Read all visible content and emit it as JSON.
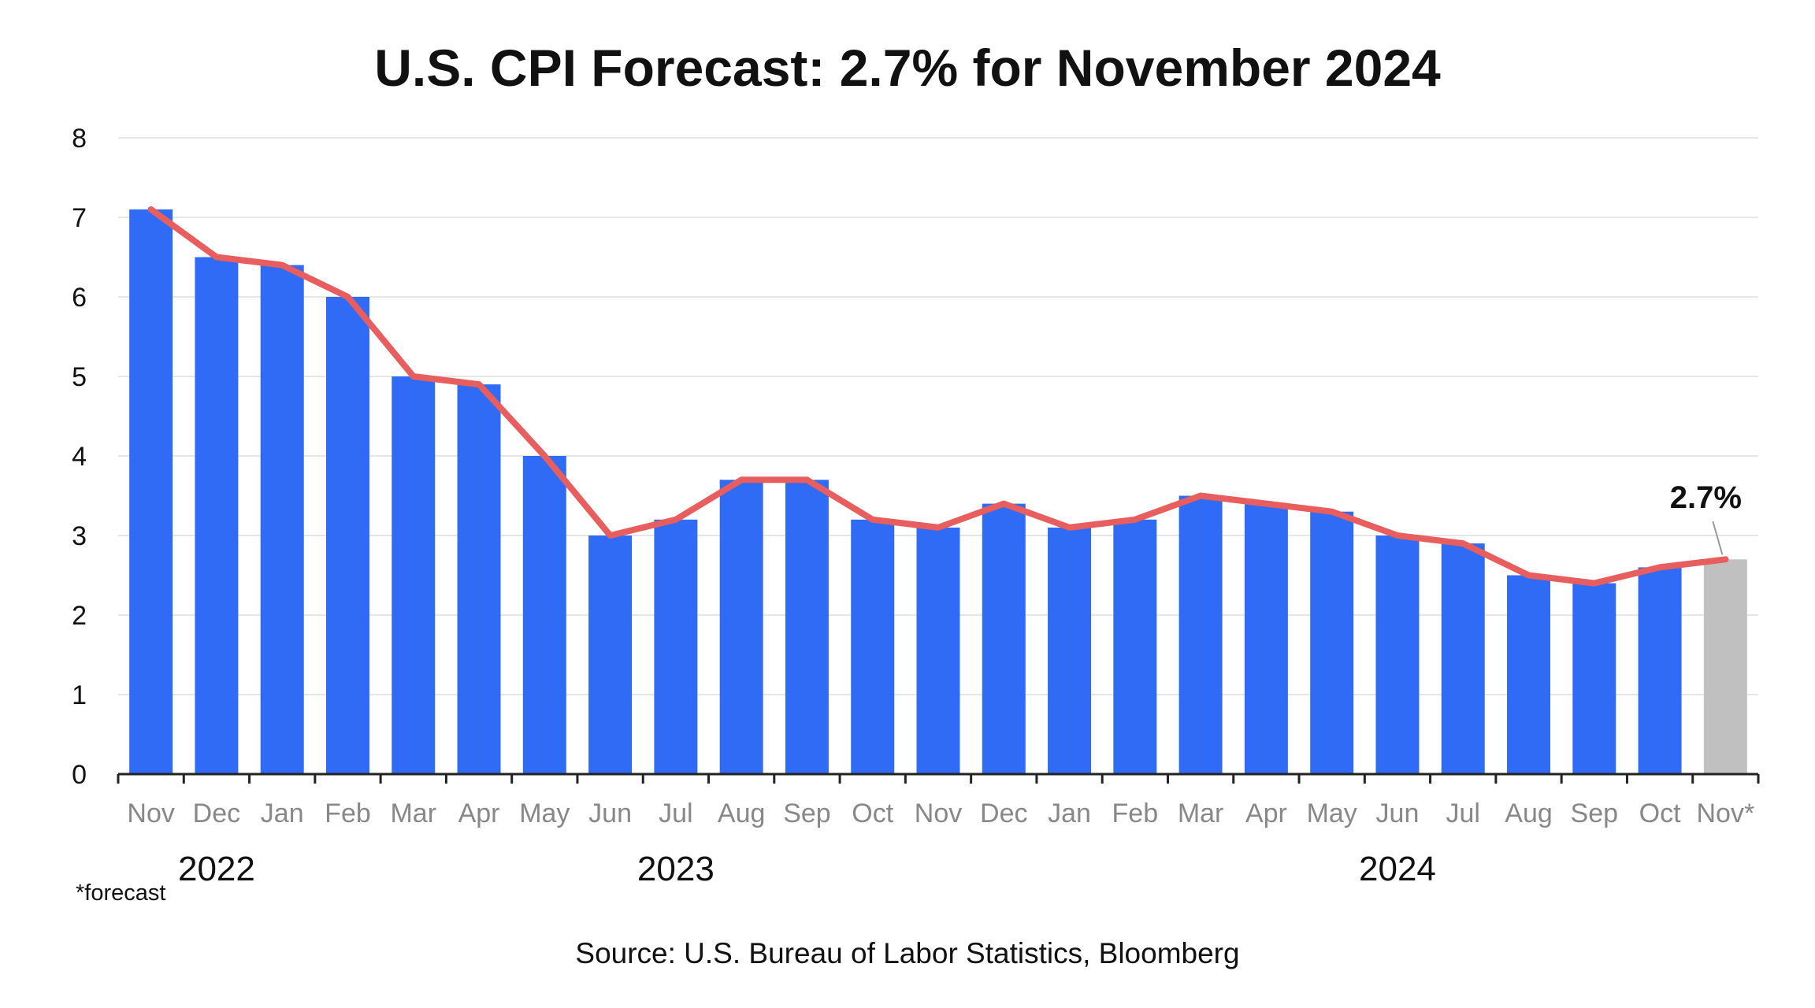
{
  "title": "U.S. CPI Forecast: 2.7% for November 2024",
  "footnote": "*forecast",
  "source": "Source: U.S. Bureau of Labor Statistics, Bloomberg",
  "colors": {
    "bar": "#2f6bf5",
    "forecast_bar": "#c0c0c0",
    "line": "#e85e5e",
    "grid": "#e6e6e6",
    "axis": "#222222",
    "tick_label": "#888888"
  },
  "chart_data": {
    "type": "bar",
    "categories": [
      "Nov",
      "Dec",
      "Jan",
      "Feb",
      "Mar",
      "Apr",
      "May",
      "Jun",
      "Jul",
      "Aug",
      "Sep",
      "Oct",
      "Nov",
      "Dec",
      "Jan",
      "Feb",
      "Mar",
      "Apr",
      "May",
      "Jun",
      "Jul",
      "Aug",
      "Sep",
      "Oct",
      "Nov*"
    ],
    "values": [
      7.1,
      6.5,
      6.4,
      6.0,
      5.0,
      4.9,
      4.0,
      3.0,
      3.2,
      3.7,
      3.7,
      3.2,
      3.1,
      3.4,
      3.1,
      3.2,
      3.5,
      3.4,
      3.3,
      3.0,
      2.9,
      2.5,
      2.4,
      2.6,
      2.7
    ],
    "forecast_index": 24,
    "line_overlay": true,
    "year_groups": [
      {
        "label": "2022",
        "from": 0,
        "to": 2
      },
      {
        "label": "2023",
        "from": 2,
        "to": 14
      },
      {
        "label": "2024",
        "from": 14,
        "to": 24
      }
    ],
    "annotation": {
      "text": "2.7%",
      "index": 24
    },
    "yticks": [
      "0",
      "1",
      "2",
      "3",
      "4",
      "5",
      "6",
      "7",
      "8"
    ],
    "ylim": [
      0,
      8
    ],
    "grid": true,
    "legend": "none"
  }
}
